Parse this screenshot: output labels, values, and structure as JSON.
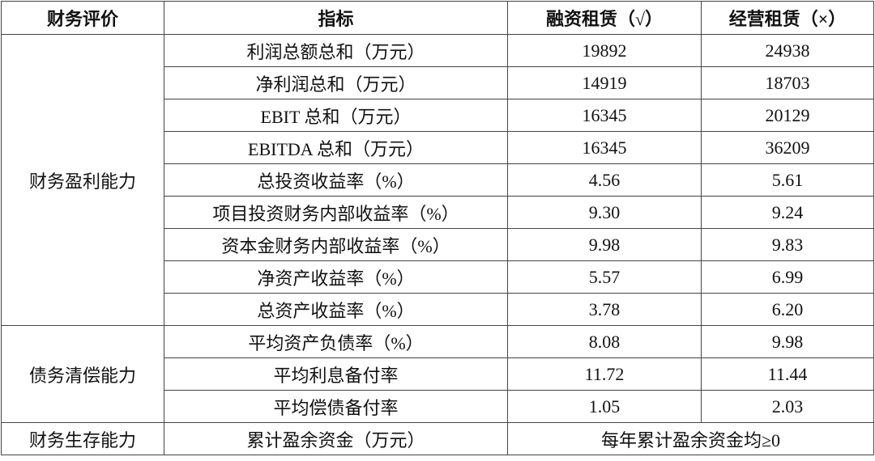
{
  "headers": [
    "财务评价",
    "指标",
    "融资租赁（√）",
    "经营租赁（×）"
  ],
  "groups": [
    {
      "label": "财务盈利能力",
      "rows": [
        {
          "indicator": "利润总额总和（万元）",
          "finance_lease": "19892",
          "operating_lease": "24938"
        },
        {
          "indicator": "净利润总和（万元）",
          "finance_lease": "14919",
          "operating_lease": "18703"
        },
        {
          "indicator": "EBIT 总和（万元）",
          "finance_lease": "16345",
          "operating_lease": "20129"
        },
        {
          "indicator": "EBITDA 总和（万元）",
          "finance_lease": "16345",
          "operating_lease": "36209"
        },
        {
          "indicator": "总投资收益率（%）",
          "finance_lease": "4.56",
          "operating_lease": "5.61"
        },
        {
          "indicator": "项目投资财务内部收益率（%）",
          "finance_lease": "9.30",
          "operating_lease": "9.24"
        },
        {
          "indicator": "资本金财务内部收益率（%）",
          "finance_lease": "9.98",
          "operating_lease": "9.83"
        },
        {
          "indicator": "净资产收益率（%）",
          "finance_lease": "5.57",
          "operating_lease": "6.99"
        },
        {
          "indicator": "总资产收益率（%）",
          "finance_lease": "3.78",
          "operating_lease": "6.20"
        }
      ]
    },
    {
      "label": "债务清偿能力",
      "rows": [
        {
          "indicator": "平均资产负债率（%）",
          "finance_lease": "8.08",
          "operating_lease": "9.98"
        },
        {
          "indicator": "平均利息备付率",
          "finance_lease": "11.72",
          "operating_lease": "11.44"
        },
        {
          "indicator": "平均偿债备付率",
          "finance_lease": "1.05",
          "operating_lease": "2.03"
        }
      ]
    },
    {
      "label": "财务生存能力",
      "rows": [
        {
          "indicator": "累计盈余资金（万元）",
          "merged_value": "每年累计盈余资金均≥0"
        }
      ]
    }
  ]
}
